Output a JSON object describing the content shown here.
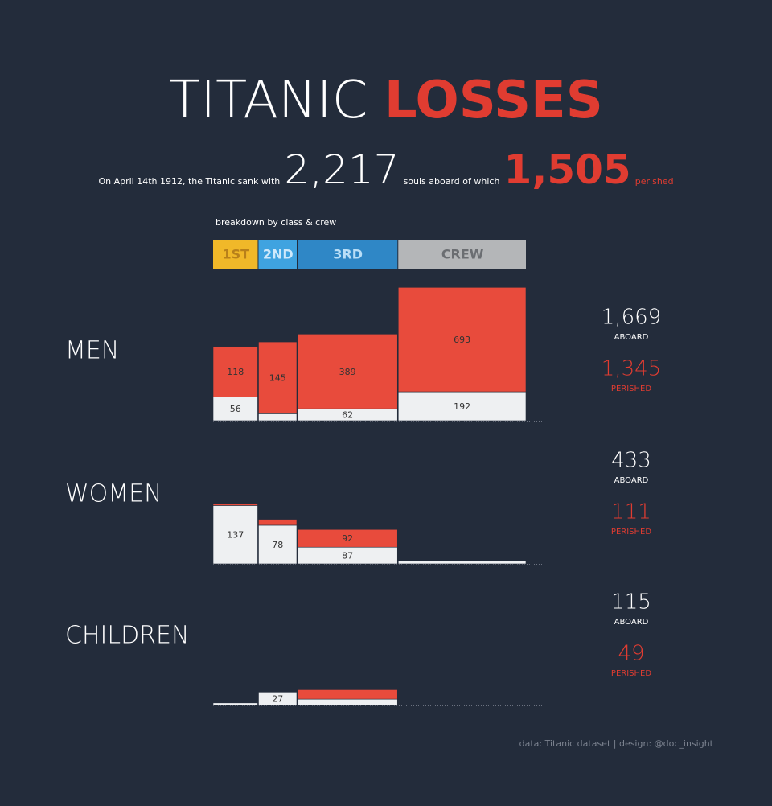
{
  "chart_data": {
    "type": "mosaic",
    "title": "TITANIC",
    "title_highlight": "LOSSES",
    "subtitle_start": "On April 14th 1912, the Titanic sank with",
    "total_aboard": {
      "value": 2217,
      "label": "2,217"
    },
    "subtitle_middle": "souls aboard of which",
    "total_perished": {
      "value": 1505,
      "label": "1,505"
    },
    "subtitle_end": "perished",
    "breakdown_label": "breakdown by class & crew",
    "classes": [
      "1ST",
      "2ND",
      "3RD",
      "CREW"
    ],
    "class_colors": [
      "#f0b829",
      "#3fa3e0",
      "#2f87c6",
      "#b4b6b8"
    ],
    "class_text_colors": [
      "#b8801a",
      "#cfe9fb",
      "#b9def7",
      "#6b6e72"
    ],
    "perished_color": "#e84b3c",
    "survived_color": "#eef0f2",
    "aboard_label": "ABOARD",
    "perished_label": "PERISHED",
    "groups": [
      {
        "name": "MEN",
        "perished": [
          118,
          145,
          389,
          693
        ],
        "survived": [
          56,
          14,
          62,
          192
        ],
        "aboard": {
          "value": 1669,
          "label": "1,669"
        },
        "perished_total": {
          "value": 1345,
          "label": "1,345"
        }
      },
      {
        "name": "WOMEN",
        "perished": [
          4,
          12,
          92,
          3
        ],
        "survived": [
          137,
          78,
          87,
          20
        ],
        "aboard": 433,
        "perished_total": 111
      },
      {
        "name": "CHILDREN",
        "perished": [
          0,
          0,
          49,
          0
        ],
        "survived": [
          6,
          27,
          33,
          0
        ],
        "aboard": 115,
        "perished_total": 49
      }
    ],
    "footer": "data: Titanic dataset | design: @doc_insight"
  }
}
